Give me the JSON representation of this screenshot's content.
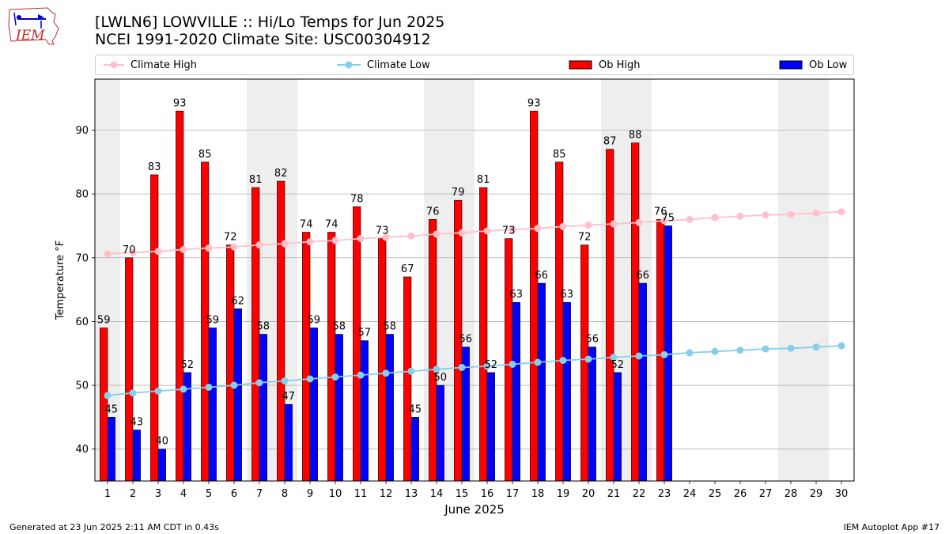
{
  "logo": {
    "text": "IEM"
  },
  "header": {
    "title_line1": "[LWLN6] LOWVILLE :: Hi/Lo Temps for Jun 2025",
    "title_line2": "NCEI 1991-2020 Climate Site: USC00304912"
  },
  "legend": {
    "climate_high": "Climate High",
    "climate_low": "Climate Low",
    "ob_high": "Ob High",
    "ob_low": "Ob Low"
  },
  "colors": {
    "ob_high": "#ff0000",
    "ob_low": "#0000ff",
    "climate_high": "#ffc0cb",
    "climate_low": "#87ceeb",
    "weekend_shade": "#eeeeee",
    "grid": "#b0b0b0"
  },
  "footer": {
    "generated": "Generated at 23 Jun 2025 2:11 AM CDT in 0.43s",
    "app": "IEM Autoplot App #17"
  },
  "chart_data": {
    "type": "bar",
    "xlabel": "June 2025",
    "ylabel": "Temperature °F",
    "ylim": [
      35,
      98
    ],
    "yticks": [
      40,
      50,
      60,
      70,
      80,
      90
    ],
    "grid": true,
    "legend_position": "top",
    "categories": [
      "1",
      "2",
      "3",
      "4",
      "5",
      "6",
      "7",
      "8",
      "9",
      "10",
      "11",
      "12",
      "13",
      "14",
      "15",
      "16",
      "17",
      "18",
      "19",
      "20",
      "21",
      "22",
      "23",
      "24",
      "25",
      "26",
      "27",
      "28",
      "29",
      "30"
    ],
    "shaded_days": [
      1,
      7,
      8,
      14,
      15,
      21,
      22,
      28,
      29
    ],
    "series": [
      {
        "name": "Ob High",
        "kind": "bar",
        "values": [
          59,
          70,
          83,
          93,
          85,
          72,
          81,
          82,
          74,
          74,
          78,
          73,
          67,
          76,
          79,
          81,
          73,
          93,
          85,
          72,
          87,
          88,
          76,
          null,
          null,
          null,
          null,
          null,
          null,
          null
        ]
      },
      {
        "name": "Ob Low",
        "kind": "bar",
        "values": [
          45,
          43,
          40,
          52,
          59,
          62,
          58,
          47,
          59,
          58,
          57,
          58,
          45,
          50,
          56,
          52,
          63,
          66,
          63,
          56,
          52,
          66,
          75,
          null,
          null,
          null,
          null,
          null,
          null,
          null
        ]
      },
      {
        "name": "Climate High",
        "kind": "line",
        "values": [
          70.6,
          70.8,
          71.0,
          71.3,
          71.5,
          71.7,
          72.0,
          72.2,
          72.5,
          72.7,
          73.0,
          73.2,
          73.4,
          73.7,
          73.9,
          74.2,
          74.4,
          74.6,
          74.9,
          75.1,
          75.3,
          75.5,
          75.8,
          76.0,
          76.3,
          76.5,
          76.7,
          76.8,
          77.0,
          77.2
        ]
      },
      {
        "name": "Climate Low",
        "kind": "line",
        "values": [
          48.4,
          48.8,
          49.1,
          49.4,
          49.7,
          50.0,
          50.4,
          50.7,
          51.0,
          51.3,
          51.6,
          51.9,
          52.2,
          52.5,
          52.8,
          53.0,
          53.3,
          53.6,
          53.9,
          54.1,
          54.4,
          54.6,
          54.8,
          55.1,
          55.3,
          55.5,
          55.7,
          55.8,
          56.0,
          56.2
        ]
      }
    ]
  }
}
